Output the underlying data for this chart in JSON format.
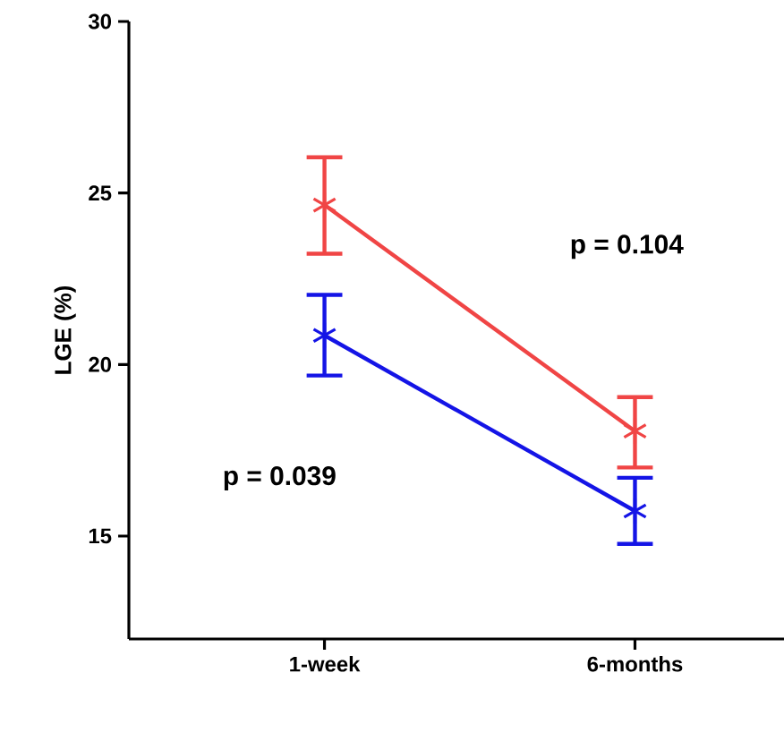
{
  "chart_data": {
    "type": "line",
    "ylabel": "LGE (%)",
    "categories": [
      "1-week",
      "6-months"
    ],
    "series": [
      {
        "color": "#f04545",
        "values": [
          24.65,
          18.06
        ],
        "errors": [
          [
            23.23,
            26.04
          ],
          [
            17.0,
            19.05
          ]
        ]
      },
      {
        "color": "#1414e6",
        "values": [
          20.85,
          15.73
        ],
        "errors": [
          [
            19.68,
            22.03
          ],
          [
            14.77,
            16.7
          ]
        ]
      }
    ],
    "ylim": [
      12,
      30
    ],
    "yticks": [
      15,
      20,
      25,
      30
    ],
    "marker": "cross",
    "grid": false,
    "annotations": [
      "p = 0.104",
      "p = 0.039"
    ]
  }
}
